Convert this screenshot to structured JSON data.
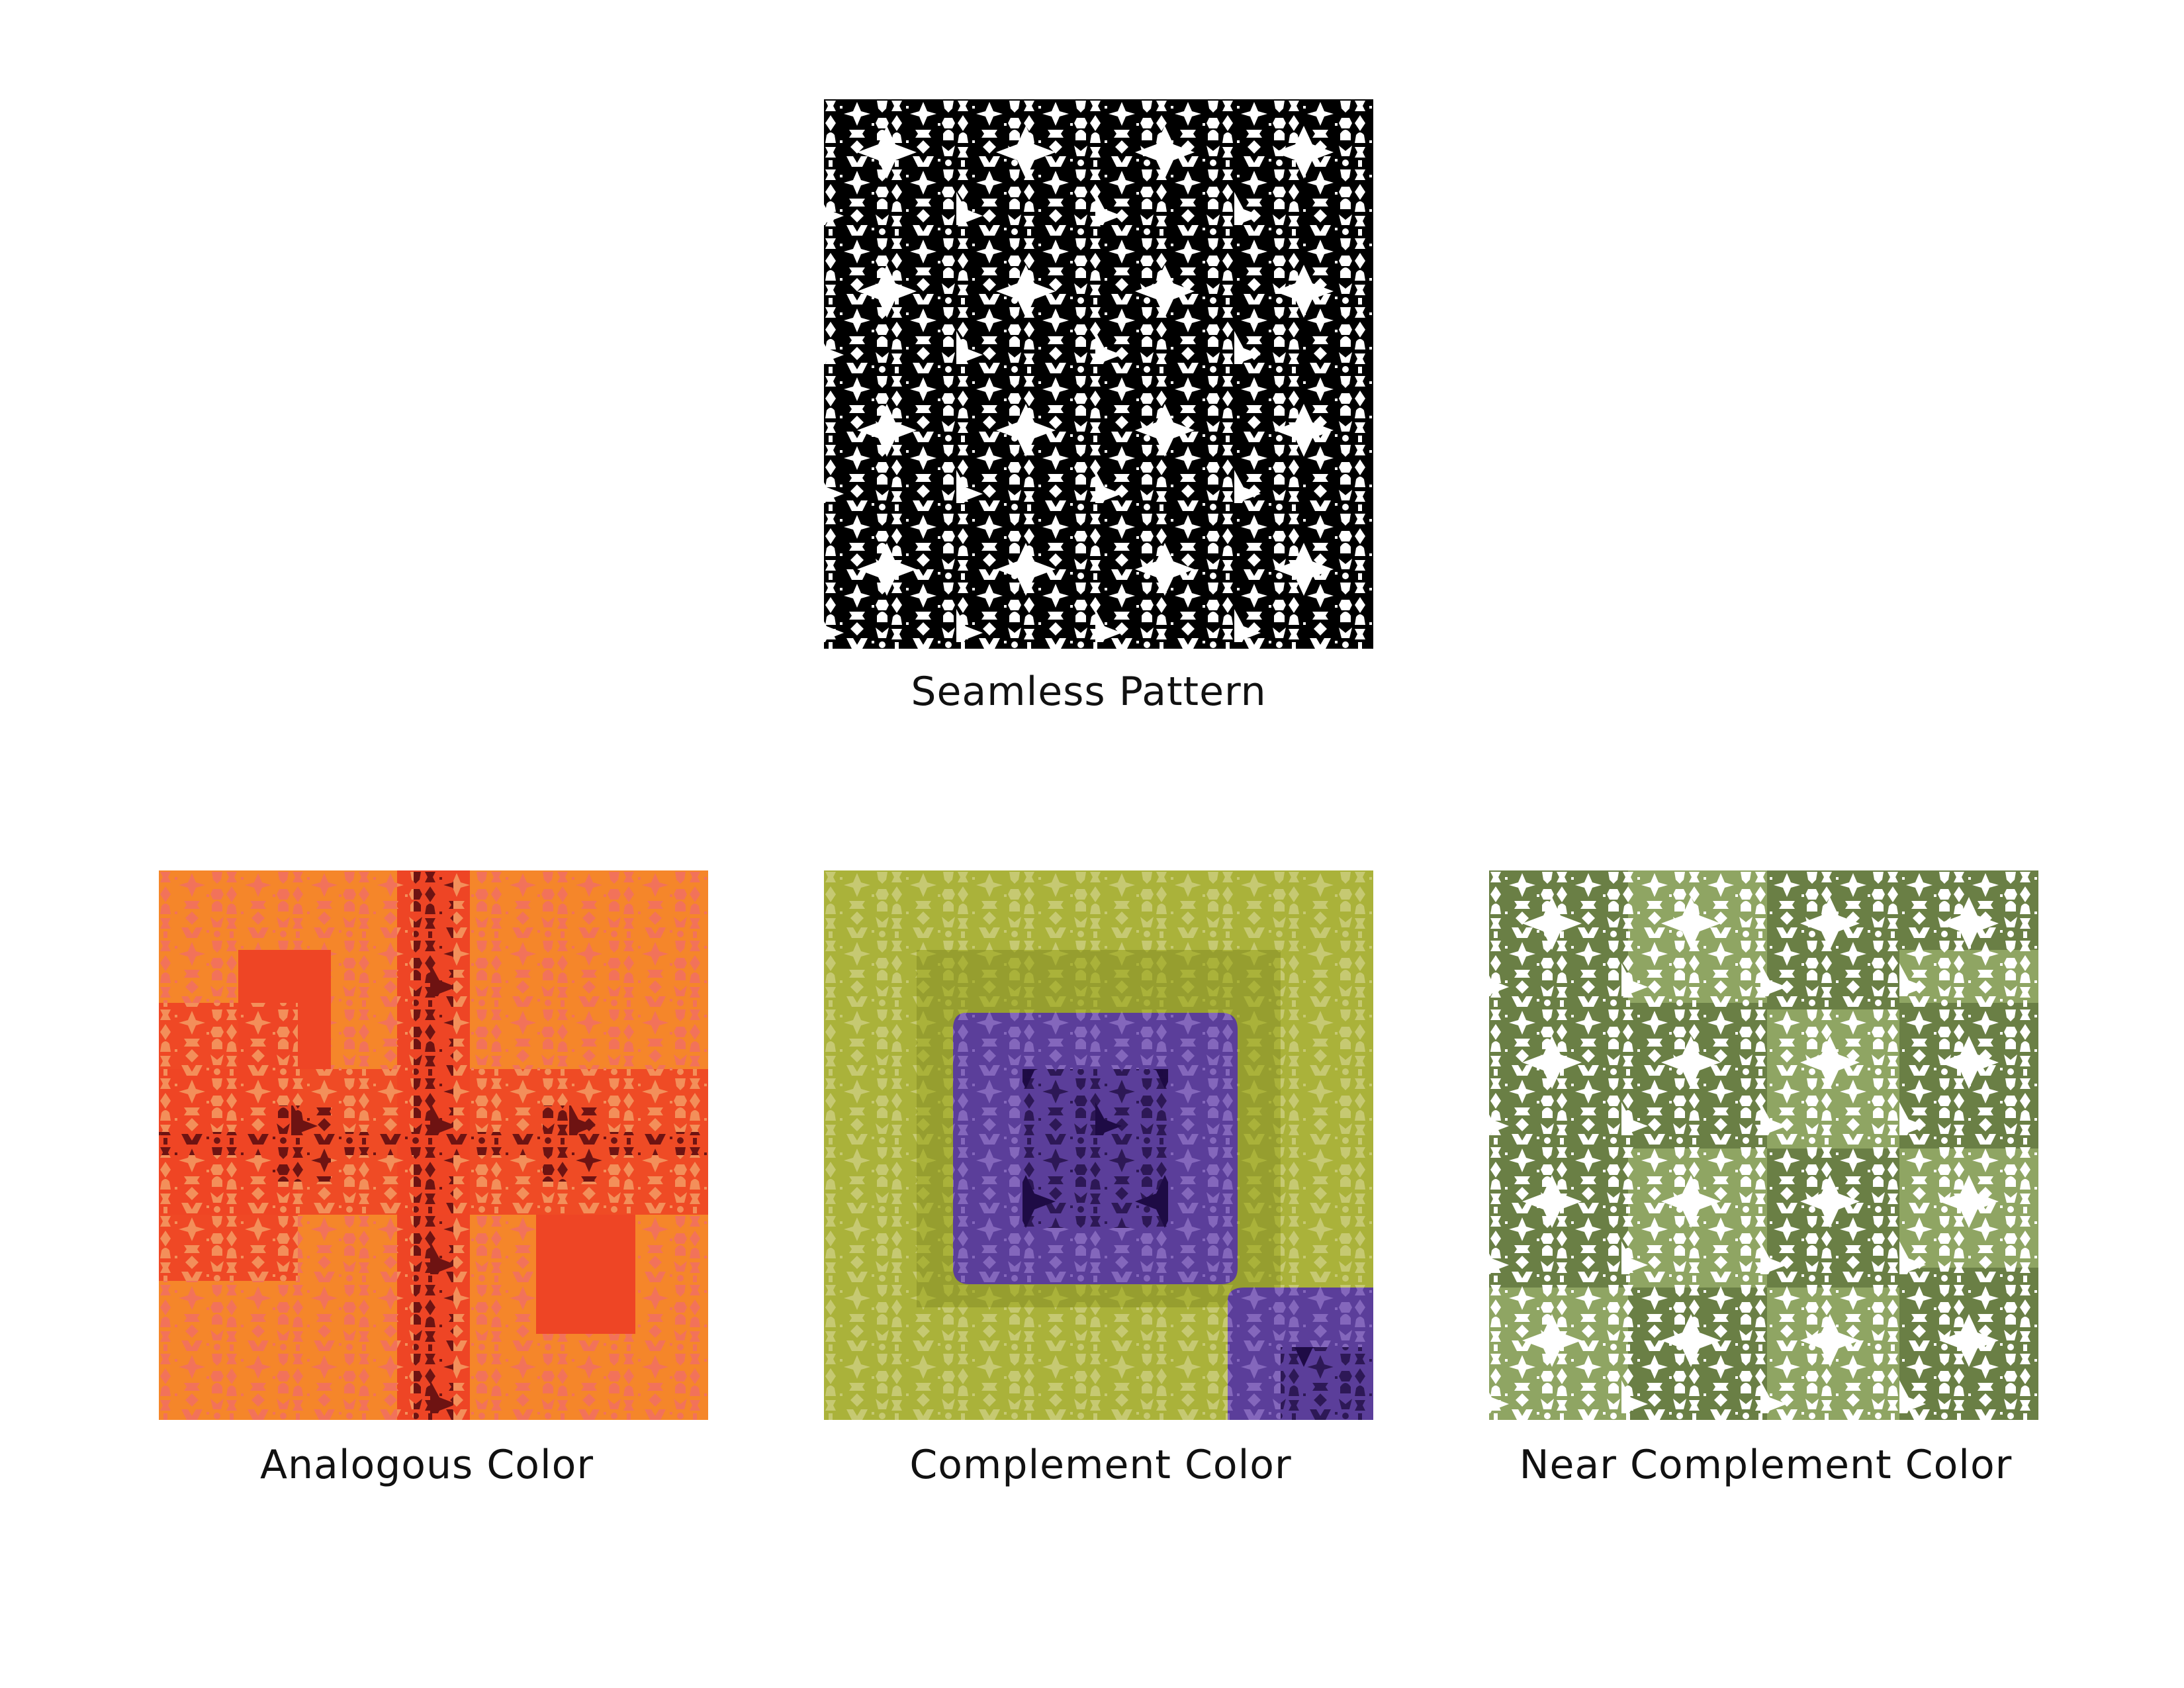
{
  "panels": [
    {
      "caption": "Seamless Pattern",
      "palette": {
        "base": "#000000",
        "motif": "#ffffff"
      }
    },
    {
      "caption": "Analogous Color",
      "palette": {
        "light_ground": "#f5862a",
        "light_motif": "#f2725a",
        "mid_ground": "#ee4525",
        "mid_motif": "#f38f5a",
        "dark_motif": "#6e1312"
      }
    },
    {
      "caption": "Complement Color",
      "palette": {
        "ground": "#aab23a",
        "shadow": "#949b2f",
        "motif": "#c6c972",
        "blob": "#5b3e9a",
        "blob_motif": "#8467bc",
        "dark_motif": "#1e0b45"
      }
    },
    {
      "caption": "Near Complement Color",
      "palette": {
        "dark": "#6a7f45",
        "light": "#8fa563",
        "motif": "#ffffff"
      }
    }
  ]
}
